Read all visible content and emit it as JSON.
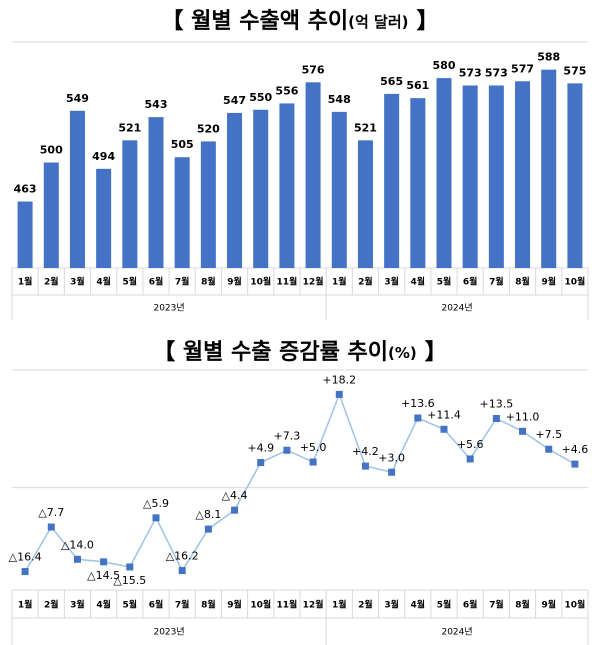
{
  "chart_data": [
    {
      "type": "bar",
      "title": "【 월별 수출액 추이",
      "title_unit": "(억 달러)",
      "title_end": "】",
      "categories": [
        "1월",
        "2월",
        "3월",
        "4월",
        "5월",
        "6월",
        "7월",
        "8월",
        "9월",
        "10월",
        "11월",
        "12월",
        "1월",
        "2월",
        "3월",
        "4월",
        "5월",
        "6월",
        "7월",
        "8월",
        "9월",
        "10월"
      ],
      "groups": [
        {
          "label": "2023년",
          "count": 12
        },
        {
          "label": "2024년",
          "count": 10
        }
      ],
      "values": [
        463,
        500,
        549,
        494,
        521,
        543,
        505,
        520,
        547,
        550,
        556,
        576,
        548,
        521,
        565,
        561,
        580,
        573,
        573,
        577,
        588,
        575
      ],
      "color": "#4472c4",
      "ylim": [
        400,
        600
      ]
    },
    {
      "type": "line",
      "title": "【 월별 수출 증감률 추이",
      "title_unit": "(%)",
      "title_end": "】",
      "categories": [
        "1월",
        "2월",
        "3월",
        "4월",
        "5월",
        "6월",
        "7월",
        "8월",
        "9월",
        "10월",
        "11월",
        "12월",
        "1월",
        "2월",
        "3월",
        "4월",
        "5월",
        "6월",
        "7월",
        "8월",
        "9월",
        "10월"
      ],
      "groups": [
        {
          "label": "2023년",
          "count": 12
        },
        {
          "label": "2024년",
          "count": 10
        }
      ],
      "values": [
        -16.4,
        -7.7,
        -14.0,
        -14.5,
        -15.5,
        -5.9,
        -16.2,
        -8.1,
        -4.4,
        4.9,
        7.3,
        5.0,
        18.2,
        4.2,
        3.0,
        13.6,
        11.4,
        5.6,
        13.5,
        11.0,
        7.5,
        4.6
      ],
      "value_labels": [
        "△16.4",
        "△7.7",
        "△14.0",
        "△14.5",
        "△15.5",
        "△5.9",
        "△16.2",
        "△8.1",
        "△4.4",
        "+4.9",
        "+7.3",
        "+5.0",
        "+18.2",
        "+4.2",
        "+3.0",
        "+13.6",
        "+11.4",
        "+5.6",
        "+13.5",
        "+11.0",
        "+7.5",
        "+4.6"
      ],
      "color": "#9dc3e6",
      "marker_color": "#4472c4",
      "ylim": [
        -20,
        22
      ]
    }
  ]
}
